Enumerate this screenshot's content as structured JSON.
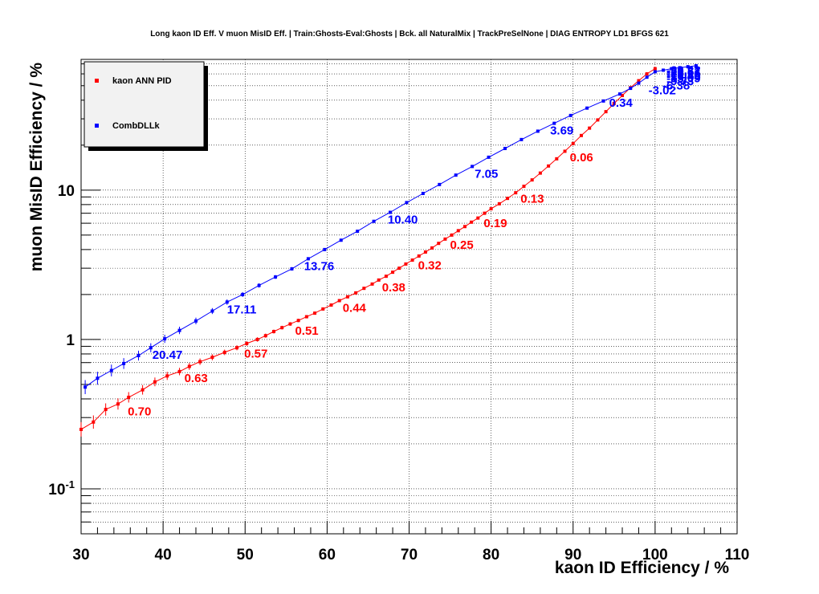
{
  "chart_data": {
    "type": "line",
    "title": "Long kaon ID Eff. V muon MisID Eff. | Train:Ghosts-Eval:Ghosts | Bck. all NaturalMix | TrackPreSelNone | DIAG ENTROPY LD1 BFGS 621",
    "xlabel": "kaon ID Efficiency / %",
    "ylabel": "muon MisID Efficiency / %",
    "xlim": [
      30,
      110
    ],
    "ylim": [
      0.05,
      75
    ],
    "y_scale": "log",
    "grid": true,
    "legend_position": "top-left",
    "x_ticks": [
      "30",
      "40",
      "50",
      "60",
      "70",
      "80",
      "90",
      "100",
      "110"
    ],
    "y_ticks": [
      {
        "value": 0.1,
        "base": "10",
        "exp": "-1"
      },
      {
        "value": 1,
        "label": "1"
      },
      {
        "value": 10,
        "label": "10"
      }
    ],
    "series": [
      {
        "name": "kaon ANN PID",
        "color": "#ff0000",
        "x": [
          30,
          31.5,
          33,
          34.5,
          35.8,
          37.5,
          39,
          40.5,
          42,
          43.2,
          44.5,
          46,
          47.5,
          49,
          50.2,
          51.5,
          52.5,
          53.5,
          54.5,
          55.5,
          56.5,
          57.5,
          58.5,
          59.5,
          60.5,
          61.5,
          62.5,
          63.5,
          64.5,
          65.5,
          66.3,
          67.2,
          68,
          68.8,
          69.6,
          70.4,
          71.2,
          72,
          72.8,
          73.6,
          74.4,
          75.2,
          76,
          76.8,
          77.6,
          78.4,
          79.2,
          80,
          81,
          82,
          83,
          84,
          85,
          86,
          87,
          88,
          89,
          90,
          91,
          92,
          93,
          94,
          95,
          96,
          97,
          98,
          99,
          100
        ],
        "y": [
          0.25,
          0.28,
          0.34,
          0.37,
          0.41,
          0.46,
          0.52,
          0.57,
          0.61,
          0.66,
          0.71,
          0.76,
          0.82,
          0.88,
          0.94,
          1.0,
          1.06,
          1.13,
          1.2,
          1.27,
          1.34,
          1.42,
          1.5,
          1.6,
          1.7,
          1.82,
          1.93,
          2.05,
          2.2,
          2.35,
          2.5,
          2.65,
          2.82,
          3.0,
          3.2,
          3.4,
          3.62,
          3.85,
          4.1,
          4.4,
          4.7,
          5.0,
          5.35,
          5.7,
          6.1,
          6.5,
          7.0,
          7.5,
          8.1,
          8.8,
          9.6,
          10.6,
          11.7,
          13.0,
          14.5,
          16.2,
          18.2,
          20.5,
          23.2,
          26.0,
          29.5,
          33.5,
          38.0,
          43.0,
          48.5,
          54.0,
          60.0,
          65.0
        ]
      },
      {
        "name": "CombDLLk",
        "color": "#0000ff",
        "x": [
          30.5,
          32,
          33.7,
          35.2,
          37,
          38.5,
          40.2,
          42,
          44,
          46,
          47.8,
          49.7,
          51.7,
          53.7,
          55.7,
          57.7,
          59.7,
          61.7,
          63.7,
          65.7,
          67.7,
          69.7,
          71.7,
          73.7,
          75.7,
          77.7,
          79.7,
          81.7,
          83.7,
          85.7,
          87.7,
          89.7,
          91.7,
          93.7,
          95.7,
          97,
          98,
          99,
          100,
          101,
          102,
          103,
          104,
          105
        ],
        "y": [
          0.48,
          0.55,
          0.62,
          0.69,
          0.78,
          0.88,
          1.01,
          1.15,
          1.33,
          1.55,
          1.78,
          2.0,
          2.3,
          2.62,
          2.97,
          3.47,
          4.0,
          4.62,
          5.3,
          6.18,
          7.1,
          8.25,
          9.5,
          10.9,
          12.6,
          14.4,
          16.6,
          19.0,
          21.8,
          24.8,
          28.0,
          31.6,
          35.4,
          39.5,
          44.0,
          48.0,
          52.0,
          57.0,
          62.0,
          63.5,
          65.0,
          66.0,
          67.0,
          68.0
        ]
      }
    ],
    "annotations": [
      {
        "series": "kaon ANN PID",
        "text": "0.70",
        "x": 35.3,
        "y": 0.37
      },
      {
        "series": "kaon ANN PID",
        "text": "0.63",
        "x": 42.2,
        "y": 0.615
      },
      {
        "series": "kaon ANN PID",
        "text": "0.57",
        "x": 49.5,
        "y": 0.9
      },
      {
        "series": "kaon ANN PID",
        "text": "0.51",
        "x": 55.7,
        "y": 1.28
      },
      {
        "series": "kaon ANN PID",
        "text": "0.44",
        "x": 61.5,
        "y": 1.82
      },
      {
        "series": "kaon ANN PID",
        "text": "0.38",
        "x": 66.3,
        "y": 2.5
      },
      {
        "series": "kaon ANN PID",
        "text": "0.32",
        "x": 70.7,
        "y": 3.5
      },
      {
        "series": "kaon ANN PID",
        "text": "0.25",
        "x": 74.6,
        "y": 4.8
      },
      {
        "series": "kaon ANN PID",
        "text": "0.19",
        "x": 78.7,
        "y": 6.7
      },
      {
        "series": "kaon ANN PID",
        "text": "0.13",
        "x": 83.2,
        "y": 9.8
      },
      {
        "series": "kaon ANN PID",
        "text": "0.06",
        "x": 89.2,
        "y": 18.5
      },
      {
        "series": "CombDLLk",
        "text": "20.47",
        "x": 38.3,
        "y": 0.88
      },
      {
        "series": "CombDLLk",
        "text": "17.11",
        "x": 47.4,
        "y": 1.78
      },
      {
        "series": "CombDLLk",
        "text": "13.76",
        "x": 56.8,
        "y": 3.47
      },
      {
        "series": "CombDLLk",
        "text": "10.40",
        "x": 67.0,
        "y": 7.1
      },
      {
        "series": "CombDLLk",
        "text": "7.05",
        "x": 77.6,
        "y": 14.4
      },
      {
        "series": "CombDLLk",
        "text": "3.69",
        "x": 86.8,
        "y": 28.0
      },
      {
        "series": "CombDLLk",
        "text": "0.34",
        "x": 94.0,
        "y": 43.0
      },
      {
        "series": "CombDLLk",
        "text": "-3.02",
        "x": 98.8,
        "y": 52.0
      },
      {
        "series": "CombDLLk",
        "text": "-6.38",
        "x": 100.5,
        "y": 56.0
      },
      {
        "series": "CombDLLk",
        "text": "-9.73",
        "x": 101,
        "y": 60.0
      },
      {
        "series": "CombDLLk",
        "text": "-13.09",
        "x": 101,
        "y": 62.5
      },
      {
        "series": "CombDLLk",
        "text": "-16.45",
        "x": 101,
        "y": 64.5
      },
      {
        "series": "CombDLLk",
        "text": "-19.80",
        "x": 101,
        "y": 66.0
      },
      {
        "series": "CombDLLk",
        "text": "-23.16",
        "x": 101,
        "y": 67.5
      },
      {
        "series": "CombDLLk",
        "text": "-26.51",
        "x": 101,
        "y": 69.0
      },
      {
        "series": "CombDLLk",
        "text": "-29.87",
        "x": 101,
        "y": 70.0
      },
      {
        "series": "CombDLLk",
        "text": "-33.22",
        "x": 101,
        "y": 71.0
      }
    ]
  }
}
